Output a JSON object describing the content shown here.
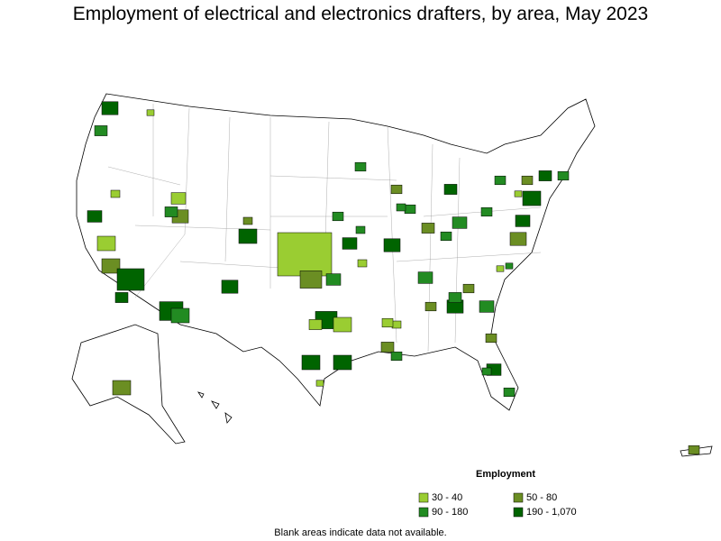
{
  "title": "Employment of electrical and electronics drafters, by area, May 2023",
  "legend": {
    "title": "Employment",
    "items": [
      {
        "label": "30 - 40",
        "color": "#9acd32"
      },
      {
        "label": "50 - 80",
        "color": "#6b8e23"
      },
      {
        "label": "90 - 180",
        "color": "#228b22"
      },
      {
        "label": "190 - 1,070",
        "color": "#006400"
      }
    ]
  },
  "note": "Blank areas indicate data not available."
}
